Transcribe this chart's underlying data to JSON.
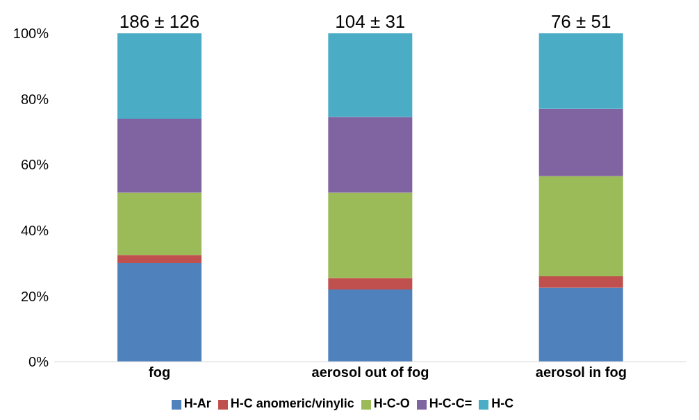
{
  "chart_data": {
    "type": "bar",
    "stacked": true,
    "categories": [
      "fog",
      "aerosol out of fog",
      "aerosol in fog"
    ],
    "series": [
      {
        "name": "H-Ar",
        "color": "#4f81bd",
        "values": [
          30,
          22,
          22.5
        ]
      },
      {
        "name": "H-C anomeric/vinylic",
        "color": "#c0504d",
        "values": [
          2.5,
          3.5,
          3.5
        ]
      },
      {
        "name": "H-C-O",
        "color": "#9bbb59",
        "values": [
          19,
          26,
          30.5
        ]
      },
      {
        "name": "H-C-C=",
        "color": "#8064a2",
        "values": [
          22.5,
          23,
          20.5
        ]
      },
      {
        "name": "H-C",
        "color": "#4bacc6",
        "values": [
          26,
          25.5,
          23
        ]
      }
    ],
    "totals": [
      "186 ± 126",
      "104 ± 31",
      "76 ± 51"
    ],
    "ylim": [
      0,
      100
    ],
    "yticks": [
      {
        "value": 0,
        "label": "0%"
      },
      {
        "value": 20,
        "label": "20%"
      },
      {
        "value": 40,
        "label": "40%"
      },
      {
        "value": 60,
        "label": "60%"
      },
      {
        "value": 80,
        "label": "80%"
      },
      {
        "value": 100,
        "label": "100%"
      }
    ],
    "grid": false,
    "legend": "bottom"
  }
}
